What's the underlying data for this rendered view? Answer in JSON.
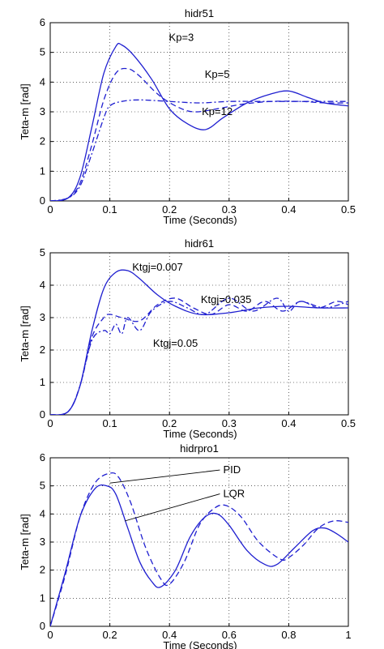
{
  "chart_data": [
    {
      "type": "line",
      "title": "hidr51",
      "xlabel": "Time (Seconds)",
      "ylabel": "Teta-m [rad]",
      "xlim": [
        0,
        0.5
      ],
      "ylim": [
        0,
        6
      ],
      "xticks": [
        "0",
        "0.1",
        "0.2",
        "0.3",
        "0.4",
        "0.5"
      ],
      "yticks": [
        "0",
        "1",
        "2",
        "3",
        "4",
        "5",
        "6"
      ],
      "grid": true,
      "series": [
        {
          "name": "Kp=3",
          "style": "solid",
          "x": [
            0,
            0.03,
            0.05,
            0.07,
            0.09,
            0.11,
            0.12,
            0.14,
            0.17,
            0.2,
            0.23,
            0.26,
            0.29,
            0.33,
            0.37,
            0.4,
            0.43,
            0.46,
            0.5
          ],
          "y": [
            0,
            0.1,
            0.8,
            2.5,
            4.3,
            5.2,
            5.25,
            4.9,
            4.1,
            3.1,
            2.6,
            2.4,
            2.8,
            3.3,
            3.6,
            3.7,
            3.5,
            3.3,
            3.2
          ]
        },
        {
          "name": "Kp=5",
          "style": "dashed",
          "x": [
            0,
            0.03,
            0.05,
            0.07,
            0.09,
            0.11,
            0.13,
            0.15,
            0.18,
            0.21,
            0.24,
            0.28,
            0.32,
            0.37,
            0.42,
            0.46,
            0.5
          ],
          "y": [
            0,
            0.1,
            0.6,
            1.9,
            3.4,
            4.3,
            4.45,
            4.2,
            3.6,
            3.2,
            3.0,
            3.1,
            3.25,
            3.35,
            3.35,
            3.3,
            3.3
          ]
        },
        {
          "name": "Kp=12",
          "style": "dashdot",
          "x": [
            0,
            0.03,
            0.05,
            0.07,
            0.09,
            0.1,
            0.12,
            0.15,
            0.2,
            0.25,
            0.3,
            0.35,
            0.4,
            0.45,
            0.5
          ],
          "y": [
            0,
            0.1,
            0.5,
            1.6,
            2.8,
            3.2,
            3.35,
            3.4,
            3.35,
            3.3,
            3.35,
            3.35,
            3.35,
            3.35,
            3.35
          ]
        }
      ],
      "annotations": [
        {
          "text": "Kp=3",
          "x": 0.22,
          "y": 5.5
        },
        {
          "text": "Kp=5",
          "x": 0.28,
          "y": 4.25
        },
        {
          "text": "Kp=12",
          "x": 0.28,
          "y": 3.0
        }
      ]
    },
    {
      "type": "line",
      "title": "hidr61",
      "xlabel": "Time (Seconds)",
      "ylabel": "Teta-m [rad]",
      "xlim": [
        0,
        0.5
      ],
      "ylim": [
        0,
        5
      ],
      "xticks": [
        "0",
        "0.1",
        "0.2",
        "0.3",
        "0.4",
        "0.5"
      ],
      "yticks": [
        "0",
        "1",
        "2",
        "3",
        "4",
        "5"
      ],
      "grid": true,
      "series": [
        {
          "name": "Ktgj=0.007",
          "style": "solid",
          "x": [
            0,
            0.03,
            0.05,
            0.07,
            0.09,
            0.11,
            0.13,
            0.15,
            0.18,
            0.21,
            0.25,
            0.3,
            0.35,
            0.4,
            0.45,
            0.5
          ],
          "y": [
            0,
            0.1,
            0.9,
            2.6,
            3.9,
            4.4,
            4.45,
            4.2,
            3.7,
            3.35,
            3.1,
            3.15,
            3.3,
            3.35,
            3.3,
            3.3
          ]
        },
        {
          "name": "Ktgj=0.035",
          "style": "dashed",
          "x": [
            0,
            0.03,
            0.05,
            0.07,
            0.09,
            0.1,
            0.12,
            0.15,
            0.18,
            0.21,
            0.24,
            0.27,
            0.3,
            0.33,
            0.36,
            0.39,
            0.42,
            0.45,
            0.48,
            0.5
          ],
          "y": [
            0,
            0.1,
            0.9,
            2.4,
            3.0,
            3.1,
            3.0,
            2.9,
            3.4,
            3.6,
            3.3,
            3.1,
            3.4,
            3.2,
            3.5,
            3.2,
            3.5,
            3.3,
            3.5,
            3.4
          ]
        },
        {
          "name": "Ktgj=0.05",
          "style": "dashdot",
          "x": [
            0,
            0.03,
            0.05,
            0.07,
            0.09,
            0.1,
            0.11,
            0.12,
            0.13,
            0.15,
            0.17,
            0.2,
            0.23,
            0.26,
            0.3,
            0.34,
            0.38,
            0.4,
            0.42,
            0.46,
            0.5
          ],
          "y": [
            0,
            0.1,
            0.9,
            2.3,
            2.6,
            2.5,
            2.8,
            2.5,
            3.0,
            2.6,
            3.2,
            3.5,
            3.3,
            3.1,
            3.6,
            3.2,
            3.6,
            3.2,
            3.5,
            3.3,
            3.5
          ]
        }
      ],
      "annotations": [
        {
          "text": "Ktgj=0.007",
          "x": 0.18,
          "y": 4.55
        },
        {
          "text": "Ktgj=0.035",
          "x": 0.295,
          "y": 3.55
        },
        {
          "text": "Ktgj=0.05",
          "x": 0.21,
          "y": 2.2
        }
      ]
    },
    {
      "type": "line",
      "title": "hidrpro1",
      "xlabel": "Time (Seconds)",
      "ylabel": "Teta-m [rad]",
      "xlim": [
        0,
        1
      ],
      "ylim": [
        0,
        6
      ],
      "xticks": [
        "0",
        "0.2",
        "0.4",
        "0.6",
        "0.8",
        "1"
      ],
      "yticks": [
        "0",
        "1",
        "2",
        "3",
        "4",
        "5",
        "6"
      ],
      "grid": true,
      "series": [
        {
          "name": "PID",
          "style": "dashed",
          "x": [
            0,
            0.05,
            0.1,
            0.15,
            0.2,
            0.23,
            0.27,
            0.32,
            0.37,
            0.4,
            0.45,
            0.5,
            0.55,
            0.59,
            0.64,
            0.7,
            0.77,
            0.8,
            0.85,
            0.9,
            0.95,
            1.0
          ],
          "y": [
            0,
            1.8,
            3.9,
            5.1,
            5.45,
            5.3,
            4.4,
            2.8,
            1.7,
            1.5,
            2.3,
            3.6,
            4.2,
            4.3,
            3.9,
            3.0,
            2.4,
            2.45,
            2.9,
            3.5,
            3.75,
            3.7
          ]
        },
        {
          "name": "LQR",
          "style": "solid",
          "x": [
            0,
            0.05,
            0.1,
            0.15,
            0.19,
            0.22,
            0.26,
            0.3,
            0.34,
            0.37,
            0.42,
            0.47,
            0.52,
            0.56,
            0.6,
            0.66,
            0.72,
            0.76,
            0.82,
            0.88,
            0.92,
            0.96,
            1.0
          ],
          "y": [
            0,
            1.9,
            3.9,
            4.9,
            5.0,
            4.7,
            3.5,
            2.3,
            1.6,
            1.4,
            2.0,
            3.2,
            3.9,
            4.0,
            3.6,
            2.7,
            2.2,
            2.2,
            2.8,
            3.4,
            3.5,
            3.3,
            3.0
          ]
        }
      ],
      "annotations": [
        {
          "text": "PID",
          "x": 0.58,
          "y": 5.45,
          "arrow_to": [
            0.2,
            5.1
          ]
        },
        {
          "text": "LQR",
          "x": 0.58,
          "y": 4.6,
          "arrow_to": [
            0.25,
            3.75
          ]
        }
      ]
    }
  ]
}
